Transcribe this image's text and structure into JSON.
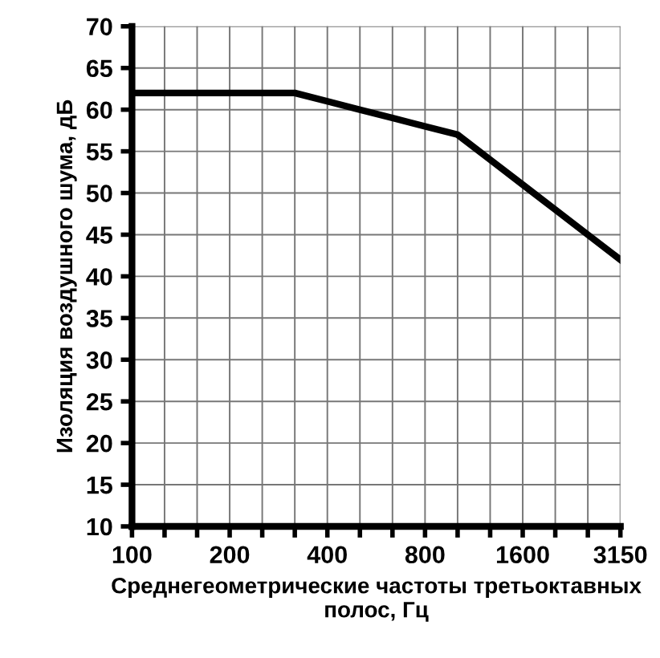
{
  "chart_data": {
    "type": "line",
    "xlabel": "Среднегеометрические частоты третьоктавных полос, Гц",
    "ylabel": "Изоляция воздушного шума, дБ",
    "categories": [
      "100",
      null,
      null,
      "200",
      null,
      null,
      "400",
      null,
      null,
      "800",
      null,
      null,
      "1600",
      null,
      null,
      "3150"
    ],
    "series": [
      {
        "color": "#000000",
        "values": [
          62,
          62,
          62,
          62,
          62,
          62,
          61,
          60,
          59,
          58,
          57,
          54,
          51,
          48,
          45,
          42
        ]
      }
    ],
    "ylim": [
      10,
      70
    ],
    "yticks": [
      10,
      15,
      20,
      25,
      30,
      35,
      40,
      45,
      50,
      55,
      60,
      65,
      70
    ],
    "grid": true,
    "marker": "none",
    "line_style": "solid"
  }
}
